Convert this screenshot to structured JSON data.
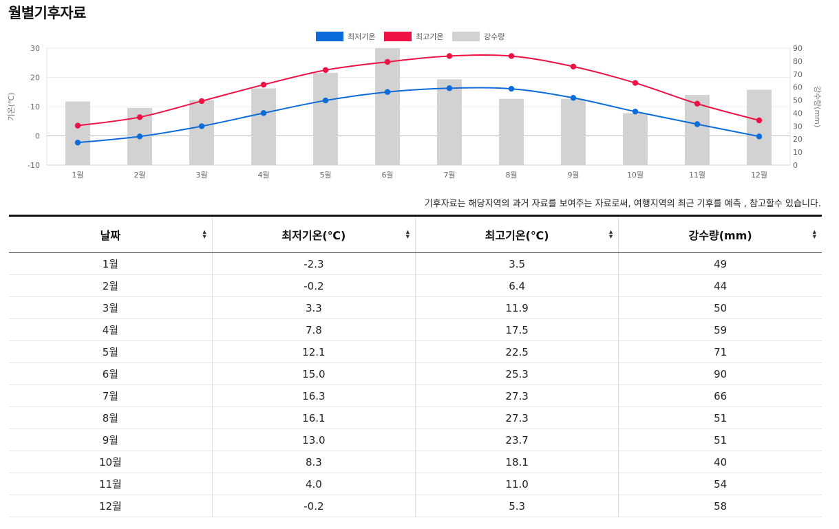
{
  "page": {
    "title": "월별기후자료"
  },
  "description": "기후자료는 해당지역의 과거 자료를 보여주는 자료로써, 여행지역의 최근 기후를 예측 , 참고할수 있습니다.",
  "colors": {
    "min_temp": "#0b6bd8",
    "max_temp": "#ee1144",
    "rain": "#d2d2d2"
  },
  "chart_data": {
    "type": "bar+line",
    "categories": [
      "1월",
      "2월",
      "3월",
      "4월",
      "5월",
      "6월",
      "7월",
      "8월",
      "9월",
      "10월",
      "11월",
      "12월"
    ],
    "series": [
      {
        "name": "최저기온",
        "type": "line",
        "axis": "left",
        "values": [
          -2.3,
          -0.2,
          3.3,
          7.8,
          12.1,
          15.0,
          16.3,
          16.1,
          13.0,
          8.3,
          4.0,
          -0.2
        ]
      },
      {
        "name": "최고기온",
        "type": "line",
        "axis": "left",
        "values": [
          3.5,
          6.4,
          11.9,
          17.5,
          22.5,
          25.3,
          27.3,
          27.3,
          23.7,
          18.1,
          11.0,
          5.3
        ]
      },
      {
        "name": "강수량",
        "type": "bar",
        "axis": "right",
        "values": [
          49,
          44,
          50,
          59,
          71,
          90,
          66,
          51,
          51,
          40,
          54,
          58
        ]
      }
    ],
    "y_left": {
      "label": "기온(℃)",
      "range": [
        -10,
        30
      ],
      "ticks": [
        "-10",
        "0",
        "10",
        "20",
        "30"
      ]
    },
    "y_right": {
      "label": "강수량(mm)",
      "range": [
        0,
        90
      ],
      "ticks": [
        "0",
        "10",
        "20",
        "30",
        "40",
        "50",
        "60",
        "70",
        "80",
        "90"
      ]
    },
    "legend": [
      "최저기온",
      "최고기온",
      "강수량"
    ],
    "legend_position": "top-center"
  },
  "table": {
    "headers": [
      "날짜",
      "최저기온(℃)",
      "최고기온(℃)",
      "강수량(mm)"
    ],
    "sort_icon": "sort-icon",
    "rows": [
      [
        "1월",
        "-2.3",
        "3.5",
        "49"
      ],
      [
        "2월",
        "-0.2",
        "6.4",
        "44"
      ],
      [
        "3월",
        "3.3",
        "11.9",
        "50"
      ],
      [
        "4월",
        "7.8",
        "17.5",
        "59"
      ],
      [
        "5월",
        "12.1",
        "22.5",
        "71"
      ],
      [
        "6월",
        "15.0",
        "25.3",
        "90"
      ],
      [
        "7월",
        "16.3",
        "27.3",
        "66"
      ],
      [
        "8월",
        "16.1",
        "27.3",
        "51"
      ],
      [
        "9월",
        "13.0",
        "23.7",
        "51"
      ],
      [
        "10월",
        "8.3",
        "18.1",
        "40"
      ],
      [
        "11월",
        "4.0",
        "11.0",
        "54"
      ],
      [
        "12월",
        "-0.2",
        "5.3",
        "58"
      ]
    ]
  }
}
